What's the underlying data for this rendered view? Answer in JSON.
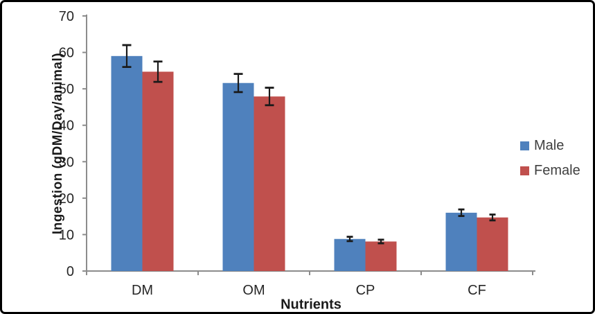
{
  "chart_data": {
    "type": "bar",
    "title": "",
    "categories": [
      "DM",
      "OM",
      "CP",
      "CF"
    ],
    "series": [
      {
        "name": "Male",
        "color": "#4F81BD",
        "values": [
          59.0,
          51.6,
          8.8,
          16.0
        ],
        "errors": [
          3.0,
          2.5,
          0.6,
          0.9
        ]
      },
      {
        "name": "Female",
        "color": "#C0504D",
        "values": [
          54.7,
          47.9,
          8.1,
          14.7
        ],
        "errors": [
          2.8,
          2.4,
          0.5,
          0.8
        ]
      }
    ],
    "xlabel": "Nutrients",
    "ylabel": "Ingestion (gDM/Day/animal)",
    "ylim": [
      0,
      70
    ],
    "yticks": [
      0,
      10,
      20,
      30,
      40,
      50,
      60,
      70
    ],
    "grid": false,
    "error_bars": true,
    "legend_position": "right"
  },
  "colors": {
    "male_bar": "#4F81BD",
    "female_bar": "#C0504D",
    "axis_line": "#8C8C8C",
    "tick_text": "#262626",
    "error_bar": "#1A1A1A",
    "background": "#FFFFFF",
    "border": "#000000"
  }
}
